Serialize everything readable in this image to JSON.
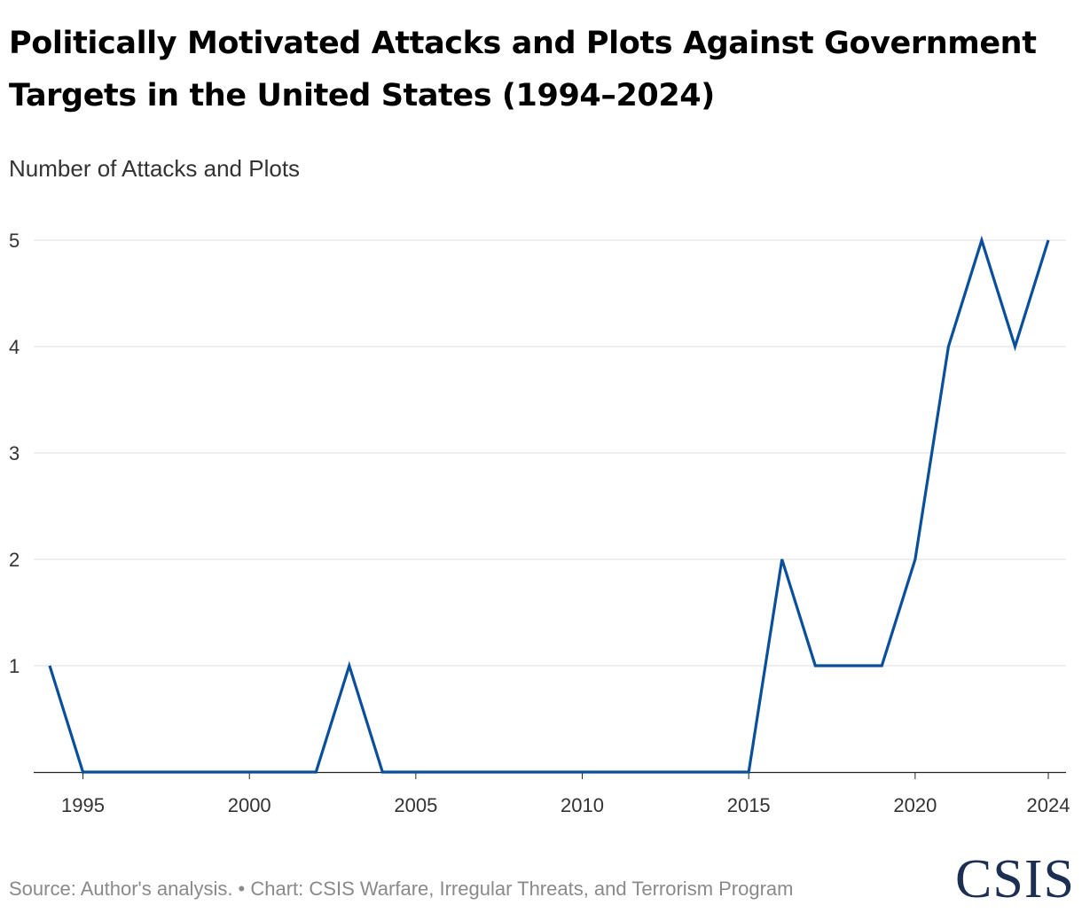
{
  "title": "Politically Motivated Attacks and Plots Against Government Targets in the United States (1994–2024)",
  "colors": {
    "line": "#0a4f9c",
    "grid": "#dcdcdc",
    "axis": "#222222",
    "logo": "#1c2f52"
  },
  "chart_data": {
    "type": "line",
    "title": "Politically Motivated Attacks and Plots Against Government Targets in the United States (1994–2024)",
    "ylabel": "Number of Attacks and Plots",
    "xlabel": "",
    "ylim": [
      0,
      5
    ],
    "xlim": [
      1994,
      2024
    ],
    "grid": true,
    "x": [
      1994,
      1995,
      1996,
      1997,
      1998,
      1999,
      2000,
      2001,
      2002,
      2003,
      2004,
      2005,
      2006,
      2007,
      2008,
      2009,
      2010,
      2011,
      2012,
      2013,
      2014,
      2015,
      2016,
      2017,
      2018,
      2019,
      2020,
      2021,
      2022,
      2023,
      2024
    ],
    "series": [
      {
        "name": "Attacks and Plots",
        "values": [
          1,
          0,
          0,
          0,
          0,
          0,
          0,
          0,
          0,
          1,
          0,
          0,
          0,
          0,
          0,
          0,
          0,
          0,
          0,
          0,
          0,
          0,
          2,
          1,
          1,
          1,
          2,
          4,
          5,
          4,
          5
        ]
      }
    ],
    "x_ticks": [
      "1995",
      "2000",
      "2005",
      "2010",
      "2015",
      "2020",
      "2024"
    ],
    "y_ticks": [
      "1",
      "2",
      "3",
      "4",
      "5"
    ]
  },
  "footer": "Source: Author's analysis. • Chart: CSIS Warfare, Irregular Threats, and Terrorism Program",
  "logo_text": "CSIS"
}
